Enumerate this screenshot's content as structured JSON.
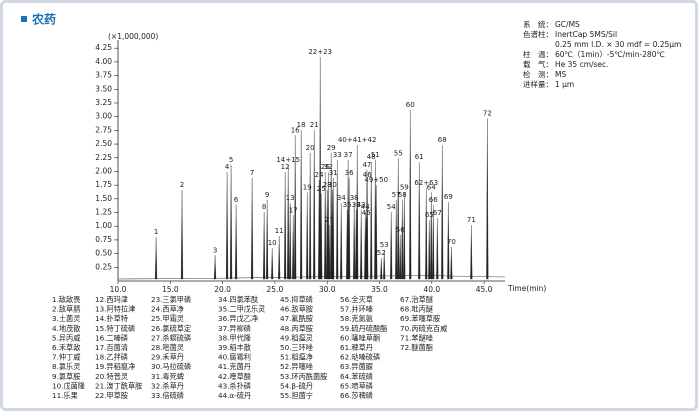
{
  "header": {
    "title": "农药"
  },
  "chart_data": {
    "type": "chromatogram",
    "y_unit_label": "(×1,000,000)",
    "x_label": "Time(min)",
    "color": "#222222",
    "xlim": [
      10,
      47
    ],
    "ylim": [
      0,
      4.4
    ],
    "xticks": [
      {
        "value": 10,
        "label": "10.0"
      },
      {
        "value": 15,
        "label": "15.0"
      },
      {
        "value": 20,
        "label": "20.0"
      },
      {
        "value": 25,
        "label": "25.0"
      },
      {
        "value": 30,
        "label": "30.0"
      },
      {
        "value": 35,
        "label": "35.0"
      },
      {
        "value": 40,
        "label": "40.0"
      },
      {
        "value": 45,
        "label": "45.0"
      }
    ],
    "yticks": [
      0.25,
      {
        "value": 0.5,
        "label": "0.50"
      },
      0.75,
      {
        "value": 1,
        "label": "1.00"
      },
      1.25,
      {
        "value": 1.5,
        "label": "1.50"
      },
      1.75,
      {
        "value": 2,
        "label": "2.00"
      },
      2.25,
      {
        "value": 2.5,
        "label": "2.50"
      },
      2.75,
      {
        "value": 3,
        "label": "3.00"
      },
      3.25,
      {
        "value": 3.5,
        "label": "3.50"
      },
      3.75,
      {
        "value": 4,
        "label": "4.00"
      },
      4.25
    ],
    "peak_labels": [
      "1",
      "2",
      "3",
      "4",
      "5",
      "6",
      "7",
      "8",
      "9",
      "10",
      "11",
      "12",
      "13",
      "14+15",
      "16",
      "17",
      "18",
      "19",
      "20",
      "21",
      "22+23",
      "24",
      "25",
      "26",
      "27",
      "28",
      "29",
      "30",
      "31",
      "32",
      "33",
      "34",
      "35",
      "36",
      "37",
      "38",
      "39",
      "40+41+42",
      "43",
      "44",
      "45",
      "46",
      "47",
      "48",
      "49+50",
      "51",
      "52",
      "53",
      "54",
      "55",
      "56",
      "57",
      "58",
      "59",
      "60",
      "61",
      "62+63",
      "64",
      "65",
      "66",
      "67",
      "68",
      "69",
      "70",
      "71",
      "72"
    ],
    "x": [
      13.64,
      16.12,
      19.28,
      20.43,
      20.81,
      21.29,
      22.82,
      23.97,
      24.26,
      24.74,
      25.41,
      25.98,
      26.46,
      26.27,
      26.94,
      26.75,
      27.51,
      28.09,
      28.37,
      28.76,
      29.33,
      29.23,
      29.43,
      29.81,
      30.19,
      30.0,
      30.38,
      30.5,
      30.57,
      30.1,
      30.96,
      31.34,
      31.91,
      32.1,
      32.0,
      32.58,
      32.77,
      32.87,
      33.25,
      33.64,
      33.73,
      33.83,
      33.8,
      34.21,
      34.69,
      34.6,
      35.17,
      35.45,
      36.12,
      36.79,
      36.98,
      36.6,
      37.18,
      37.37,
      37.94,
      38.8,
      39.47,
      39.95,
      39.76,
      40.14,
      40.53,
      41.0,
      41.58,
      41.87,
      43.78,
      45.31
    ],
    "values": [
      0.8,
      1.66,
      0.47,
      1.99,
      2.12,
      1.39,
      1.88,
      1.26,
      1.48,
      0.6,
      0.82,
      1.99,
      1.42,
      2.12,
      2.66,
      1.2,
      2.76,
      1.62,
      2.34,
      2.76,
      4.09,
      1.84,
      1.59,
      1.99,
      1.02,
      1.66,
      2.34,
      1.66,
      1.88,
      1.99,
      2.21,
      1.42,
      1.3,
      1.88,
      2.21,
      1.42,
      1.3,
      2.48,
      1.3,
      1.26,
      1.15,
      1.84,
      2.03,
      2.17,
      1.75,
      2.21,
      0.42,
      0.57,
      1.26,
      2.24,
      0.84,
      1.48,
      1.48,
      1.62,
      3.12,
      2.17,
      1.7,
      1.62,
      1.11,
      1.39,
      1.15,
      2.48,
      1.44,
      0.62,
      1.02,
      2.97
    ]
  },
  "conditions": [
    {
      "label": "系　统：",
      "value": [
        "GC/MS"
      ]
    },
    {
      "label": "色谱柱：",
      "value": [
        "InertCap 5MS/Sil",
        "0.25 mm I.D. × 30 mdf = 0.25μm"
      ]
    },
    {
      "label": "柱　温：",
      "value": [
        "60℃（1min）-5℃/min-280℃"
      ]
    },
    {
      "label": "载　气：",
      "value": [
        "He 35 cm/sec."
      ]
    },
    {
      "label": "检　测：",
      "value": [
        "MS"
      ]
    },
    {
      "label": "进样量：",
      "value": [
        "1 μm"
      ]
    }
  ],
  "legend": [
    "1.敌敌畏",
    "2.敌草腈",
    "3.土菌灵",
    "4.地茂散",
    "5.异丙威",
    "6.禾草敌",
    "7.仲丁威",
    "8.氯乐灵",
    "9.氯草胺",
    "10.戊菌隆",
    "11.乐果",
    "12.西玛津",
    "13.阿特拉津",
    "14.扑草特",
    "15.特丁硫磷",
    "16.二嗪磷",
    "17.百菌清",
    "18.乙拌磷",
    "19.异稻瘟净",
    "20.特普灵",
    "21.溴丁酰草胺",
    "22.甲草胺",
    "23.三氯甲磷",
    "24.西草净",
    "25.甲霜灵",
    "26.氯硫草定",
    "27.杀螟硫磷",
    "28.嘧菌灵",
    "29.禾草丹",
    "30.马拉硫磷",
    "31.毒死蜱",
    "32.杀草丹",
    "33.倍硫磷",
    "34.四氯苯酞",
    "35.二甲戊乐灵",
    "36.异戊乙净",
    "37.异柳磷",
    "38.甲代隆",
    "39.稻丰散",
    "40.腐霉利",
    "41.克菌丹",
    "42.喹草酸",
    "43.杀扑磷",
    "44.α-硫丹",
    "45.抑草磷",
    "46.敌草胺",
    "47.氟酰胺",
    "48.丙草胺",
    "49.稻瘟灵",
    "50.三环唑",
    "51.稻瘟净",
    "52.异噻唑",
    "53.环丙酰菌胺",
    "54.β-硫丹",
    "55.担菌宁",
    "56.全灭草",
    "57.井环嗪",
    "58.克氮氨",
    "59.硫丹硫酸酯",
    "60.噻唑草酮",
    "61.稗草丹",
    "62.哒嗪硫磷",
    "63.异菌脲",
    "64.苯硫磷",
    "65.喷草磷",
    "66.莎稗磷",
    "67.治草醚",
    "68.吡丙醚",
    "69.苯噻草胺",
    "70.丙硫克百威",
    "71.苯醚唑",
    "72.醚菌酯"
  ]
}
